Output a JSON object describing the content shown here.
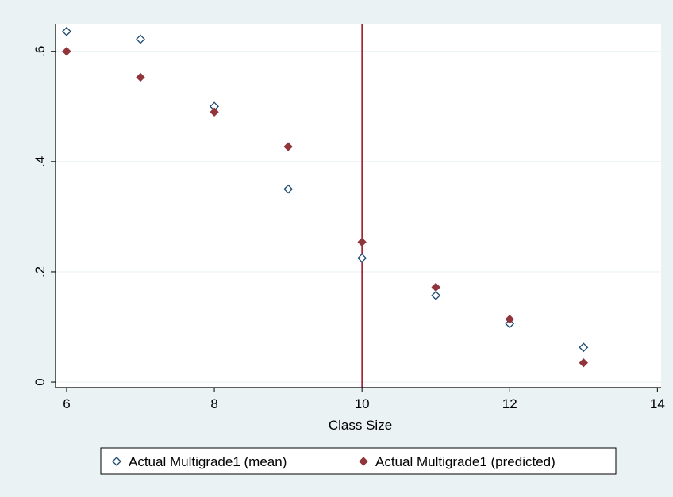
{
  "chart_data": {
    "type": "scatter",
    "title": "",
    "xlabel": "Class Size",
    "ylabel": "",
    "xlim": [
      5.85,
      14.05
    ],
    "ylim": [
      -0.01,
      0.65
    ],
    "x_ticks": [
      6,
      8,
      10,
      12,
      14
    ],
    "y_ticks": [
      0,
      0.2,
      0.4,
      0.6
    ],
    "x_tick_labels": [
      "6",
      "8",
      "10",
      "12",
      "14"
    ],
    "y_tick_labels": [
      "0",
      ".2",
      ".4",
      ".6"
    ],
    "grid": "horizontal",
    "legend_position": "bottom",
    "reference_line": {
      "orientation": "vertical",
      "x": 10,
      "color": "#9b1b30"
    },
    "series": [
      {
        "name": "Actual Multigrade1 (mean)",
        "marker": "hollow-diamond",
        "color": "#1a476f",
        "x": [
          6,
          7,
          8,
          9,
          10,
          11,
          12,
          13
        ],
        "y": [
          0.636,
          0.622,
          0.5,
          0.35,
          0.225,
          0.157,
          0.106,
          0.063
        ]
      },
      {
        "name": "Actual Multigrade1 (predicted)",
        "marker": "filled-diamond",
        "color": "#90353b",
        "x": [
          6,
          7,
          8,
          9,
          10,
          11,
          12,
          13
        ],
        "y": [
          0.6,
          0.553,
          0.49,
          0.427,
          0.254,
          0.172,
          0.114,
          0.035
        ]
      }
    ]
  }
}
